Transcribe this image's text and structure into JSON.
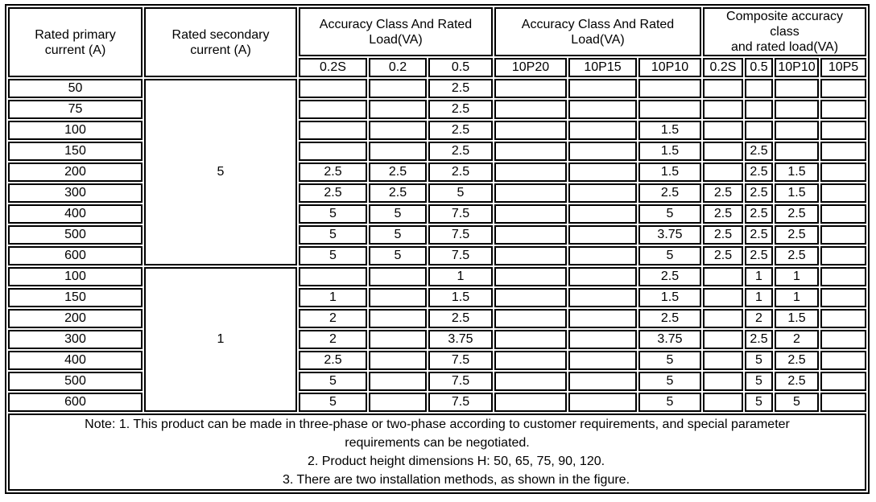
{
  "table": {
    "header": {
      "col_primary": "Rated primary\ncurrent (A)",
      "col_secondary": "Rated secondary\ncurrent (A)",
      "group_accuracy_1": "Accuracy Class And Rated\nLoad(VA)",
      "group_accuracy_2": "Accuracy Class And Rated\nLoad(VA)",
      "group_composite": "Composite accuracy\nclass\nand rated load(VA)",
      "sub_columns": [
        "0.2S",
        "0.2",
        "0.5",
        "10P20",
        "10P15",
        "10P10",
        "0.2S",
        "0.5",
        "10P10",
        "10P5"
      ]
    },
    "groups": [
      {
        "secondary_current": "5",
        "rows": [
          {
            "primary": "50",
            "values": [
              "",
              "",
              "2.5",
              "",
              "",
              "",
              "",
              "",
              "",
              ""
            ]
          },
          {
            "primary": "75",
            "values": [
              "",
              "",
              "2.5",
              "",
              "",
              "",
              "",
              "",
              "",
              ""
            ]
          },
          {
            "primary": "100",
            "values": [
              "",
              "",
              "2.5",
              "",
              "",
              "1.5",
              "",
              "",
              "",
              ""
            ]
          },
          {
            "primary": "150",
            "values": [
              "",
              "",
              "2.5",
              "",
              "",
              "1.5",
              "",
              "2.5",
              "",
              ""
            ]
          },
          {
            "primary": "200",
            "values": [
              "2.5",
              "2.5",
              "2.5",
              "",
              "",
              "1.5",
              "",
              "2.5",
              "1.5",
              ""
            ]
          },
          {
            "primary": "300",
            "values": [
              "2.5",
              "2.5",
              "5",
              "",
              "",
              "2.5",
              "2.5",
              "2.5",
              "1.5",
              ""
            ]
          },
          {
            "primary": "400",
            "values": [
              "5",
              "5",
              "7.5",
              "",
              "",
              "5",
              "2.5",
              "2.5",
              "2.5",
              ""
            ]
          },
          {
            "primary": "500",
            "values": [
              "5",
              "5",
              "7.5",
              "",
              "",
              "3.75",
              "2.5",
              "2.5",
              "2.5",
              ""
            ]
          },
          {
            "primary": "600",
            "values": [
              "5",
              "5",
              "7.5",
              "",
              "",
              "5",
              "2.5",
              "2.5",
              "2.5",
              ""
            ]
          }
        ]
      },
      {
        "secondary_current": "1",
        "rows": [
          {
            "primary": "100",
            "values": [
              "",
              "",
              "1",
              "",
              "",
              "2.5",
              "",
              "1",
              "1",
              ""
            ]
          },
          {
            "primary": "150",
            "values": [
              "1",
              "",
              "1.5",
              "",
              "",
              "1.5",
              "",
              "1",
              "1",
              ""
            ]
          },
          {
            "primary": "200",
            "values": [
              "2",
              "",
              "2.5",
              "",
              "",
              "2.5",
              "",
              "2",
              "1.5",
              ""
            ]
          },
          {
            "primary": "300",
            "values": [
              "2",
              "",
              "3.75",
              "",
              "",
              "3.75",
              "",
              "2.5",
              "2",
              ""
            ]
          },
          {
            "primary": "400",
            "values": [
              "2.5",
              "",
              "7.5",
              "",
              "",
              "5",
              "",
              "5",
              "2.5",
              ""
            ]
          },
          {
            "primary": "500",
            "values": [
              "5",
              "",
              "7.5",
              "",
              "",
              "5",
              "",
              "5",
              "2.5",
              ""
            ]
          },
          {
            "primary": "600",
            "values": [
              "5",
              "",
              "7.5",
              "",
              "",
              "5",
              "",
              "5",
              "5",
              ""
            ]
          }
        ]
      }
    ],
    "note_lines": [
      "Note: 1. This product can be made in three-phase or two-phase according to customer requirements, and special parameter",
      "requirements can be negotiated.",
      "2. Product height dimensions H: 50, 65, 75, 90, 120.",
      "3. There are two installation methods, as shown in the figure."
    ]
  }
}
